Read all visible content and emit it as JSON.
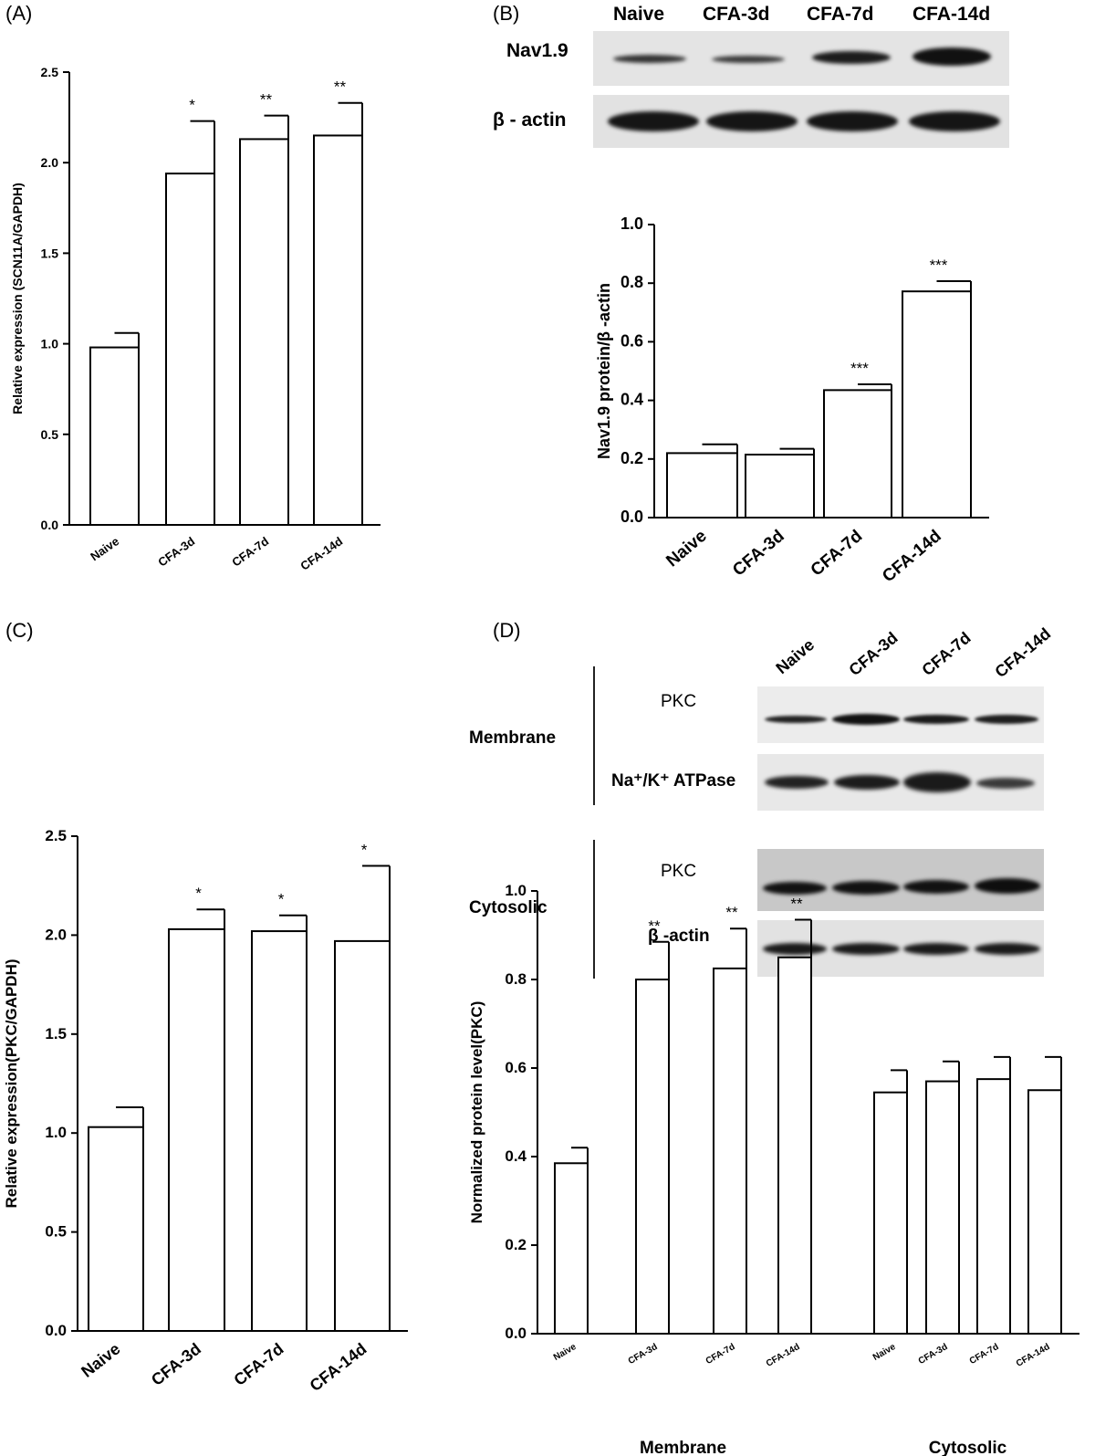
{
  "panels": {
    "a": "(A)",
    "b": "(B)",
    "c": "(C)",
    "d": "(D)"
  },
  "blot_b": {
    "lanes": [
      "Naive",
      "CFA-3d",
      "CFA-7d",
      "CFA-14d"
    ],
    "rows": [
      "Nav1.9",
      "β - actin"
    ]
  },
  "blot_d": {
    "lanes": [
      "Naive",
      "CFA-3d",
      "CFA-7d",
      "CFA-14d"
    ],
    "groups": [
      "Membrane",
      "Cytosolic"
    ],
    "membrane_rows": [
      "PKC",
      "Na⁺/K⁺ ATPase"
    ],
    "cytosolic_rows": [
      "PKC",
      "β -actin"
    ]
  },
  "chart_data": [
    {
      "id": "A",
      "type": "bar",
      "categories": [
        "Naive",
        "CFA-3d",
        "CFA-7d",
        "CFA-14d"
      ],
      "values": [
        0.98,
        1.94,
        2.13,
        2.15
      ],
      "errors": [
        0.08,
        0.29,
        0.13,
        0.18
      ],
      "significance": [
        "",
        "*",
        "**",
        "**"
      ],
      "ylabel": "Relative expression (SCN11A/GAPDH)",
      "ylim": [
        0,
        2.5
      ],
      "yticks": [
        "0.0",
        "0.5",
        "1.0",
        "1.5",
        "2.0",
        "2.5"
      ]
    },
    {
      "id": "B",
      "type": "bar",
      "categories": [
        "Naive",
        "CFA-3d",
        "CFA-7d",
        "CFA-14d"
      ],
      "values": [
        0.22,
        0.215,
        0.435,
        0.772
      ],
      "errors": [
        0.03,
        0.02,
        0.02,
        0.035
      ],
      "significance": [
        "",
        "",
        "***",
        "***"
      ],
      "ylabel": "Nav1.9 protein/β -actin",
      "ylim": [
        0,
        1.0
      ],
      "yticks": [
        "0.0",
        "0.2",
        "0.4",
        "0.6",
        "0.8",
        "1.0"
      ]
    },
    {
      "id": "C",
      "type": "bar",
      "categories": [
        "Naive",
        "CFA-3d",
        "CFA-7d",
        "CFA-14d"
      ],
      "values": [
        1.03,
        2.03,
        2.02,
        1.97
      ],
      "errors": [
        0.1,
        0.1,
        0.08,
        0.38
      ],
      "significance": [
        "",
        "*",
        "*",
        "*"
      ],
      "ylabel": "Relative expression(PKC/GAPDH)",
      "ylim": [
        0,
        2.5
      ],
      "yticks": [
        "0.0",
        "0.5",
        "1.0",
        "1.5",
        "2.0",
        "2.5"
      ]
    },
    {
      "id": "D",
      "type": "bar",
      "categories": [
        "Naive",
        "CFA-3d",
        "CFA-7d",
        "CFA-14d",
        "Naive",
        "CFA-3d",
        "CFA-7d",
        "CFA-14d"
      ],
      "groups": [
        "Membrane",
        "Cytosolic"
      ],
      "values": [
        0.385,
        0.8,
        0.825,
        0.85,
        0.545,
        0.57,
        0.575,
        0.55
      ],
      "errors": [
        0.035,
        0.085,
        0.09,
        0.085,
        0.05,
        0.045,
        0.05,
        0.075
      ],
      "significance": [
        "",
        "**",
        "**",
        "**",
        "",
        "",
        "",
        ""
      ],
      "ylabel": "Normalized protein level(PKC)",
      "ylim": [
        0,
        1.0
      ],
      "yticks": [
        "0.0",
        "0.2",
        "0.4",
        "0.6",
        "0.8",
        "1.0"
      ]
    }
  ]
}
